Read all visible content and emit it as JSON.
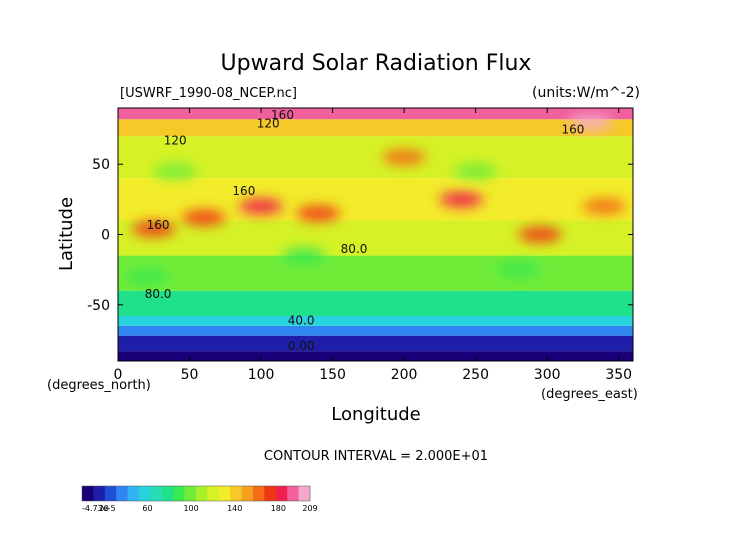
{
  "chart_data": {
    "type": "heatmap",
    "title": "Upward Solar Radiation Flux",
    "file_label": "[USWRF_1990-08_NCEP.nc]",
    "units_label": "(units:W/m^-2)",
    "xlabel": "Longitude",
    "ylabel": "Latitude",
    "x_unit_label": "(degrees_east)",
    "y_unit_label": "(degrees_north)",
    "contour_interval_label": "CONTOUR INTERVAL = 2.000E+01",
    "xlim": [
      0,
      360
    ],
    "ylim": [
      -90,
      90
    ],
    "x_ticks": [
      "0",
      "50",
      "100",
      "150",
      "200",
      "250",
      "300",
      "350"
    ],
    "x_tick_values": [
      0,
      50,
      100,
      150,
      200,
      250,
      300,
      350
    ],
    "y_ticks": [
      "50",
      "0",
      "-50"
    ],
    "y_tick_values": [
      50,
      0,
      -50
    ],
    "contour_labels": [
      {
        "text": "160",
        "x": 115,
        "y": 82
      },
      {
        "text": "120",
        "x": 105,
        "y": 76
      },
      {
        "text": "120",
        "x": 40,
        "y": 64
      },
      {
        "text": "160",
        "x": 318,
        "y": 72
      },
      {
        "text": "160",
        "x": 88,
        "y": 28
      },
      {
        "text": "160",
        "x": 28,
        "y": 4
      },
      {
        "text": "80.0",
        "x": 165,
        "y": -13
      },
      {
        "text": "80.0",
        "x": 28,
        "y": -45
      },
      {
        "text": "40.0",
        "x": 128,
        "y": -64
      },
      {
        "text": "0.00",
        "x": 128,
        "y": -82
      }
    ],
    "colorbar": {
      "ticks": [
        "-4.73e-5",
        "20",
        "60",
        "100",
        "140",
        "180",
        "209"
      ],
      "colors": [
        "#1a0078",
        "#1e1ea8",
        "#1f4fd6",
        "#2f86f0",
        "#32b4f0",
        "#28d2dc",
        "#28dcb4",
        "#20e08c",
        "#3ce850",
        "#70ec38",
        "#a8f028",
        "#d6f226",
        "#f2ec2a",
        "#f6c828",
        "#f7a020",
        "#f46b18",
        "#ee3814",
        "#f0204e",
        "#f0609c",
        "#f6a8cc"
      ]
    },
    "zonal_bands": [
      {
        "lat_from": -90,
        "lat_to": -83,
        "value": 0
      },
      {
        "lat_from": -83,
        "lat_to": -72,
        "value": 20
      },
      {
        "lat_from": -72,
        "lat_to": -65,
        "value": 40
      },
      {
        "lat_from": -65,
        "lat_to": -58,
        "value": 60
      },
      {
        "lat_from": -58,
        "lat_to": -40,
        "value": 80
      },
      {
        "lat_from": -40,
        "lat_to": -15,
        "value": 100
      },
      {
        "lat_from": -15,
        "lat_to": 10,
        "value": 115
      },
      {
        "lat_from": 10,
        "lat_to": 40,
        "value": 130
      },
      {
        "lat_from": 40,
        "lat_to": 70,
        "value": 120
      },
      {
        "lat_from": 70,
        "lat_to": 82,
        "value": 140
      },
      {
        "lat_from": 82,
        "lat_to": 90,
        "value": 190
      }
    ],
    "highlights": [
      {
        "lon": 25,
        "lat": 4,
        "value": 175
      },
      {
        "lon": 60,
        "lat": 12,
        "value": 175
      },
      {
        "lon": 100,
        "lat": 20,
        "value": 185
      },
      {
        "lon": 140,
        "lat": 15,
        "value": 175
      },
      {
        "lon": 240,
        "lat": 25,
        "value": 180
      },
      {
        "lon": 295,
        "lat": 0,
        "value": 175
      },
      {
        "lon": 340,
        "lat": 20,
        "value": 160
      },
      {
        "lon": 200,
        "lat": 55,
        "value": 160
      },
      {
        "lon": 330,
        "lat": 80,
        "value": 200
      },
      {
        "lon": 40,
        "lat": 45,
        "value": 95
      },
      {
        "lon": 130,
        "lat": -15,
        "value": 90
      },
      {
        "lon": 250,
        "lat": 45,
        "value": 95
      },
      {
        "lon": 20,
        "lat": -30,
        "value": 90
      },
      {
        "lon": 280,
        "lat": -25,
        "value": 85
      }
    ]
  }
}
